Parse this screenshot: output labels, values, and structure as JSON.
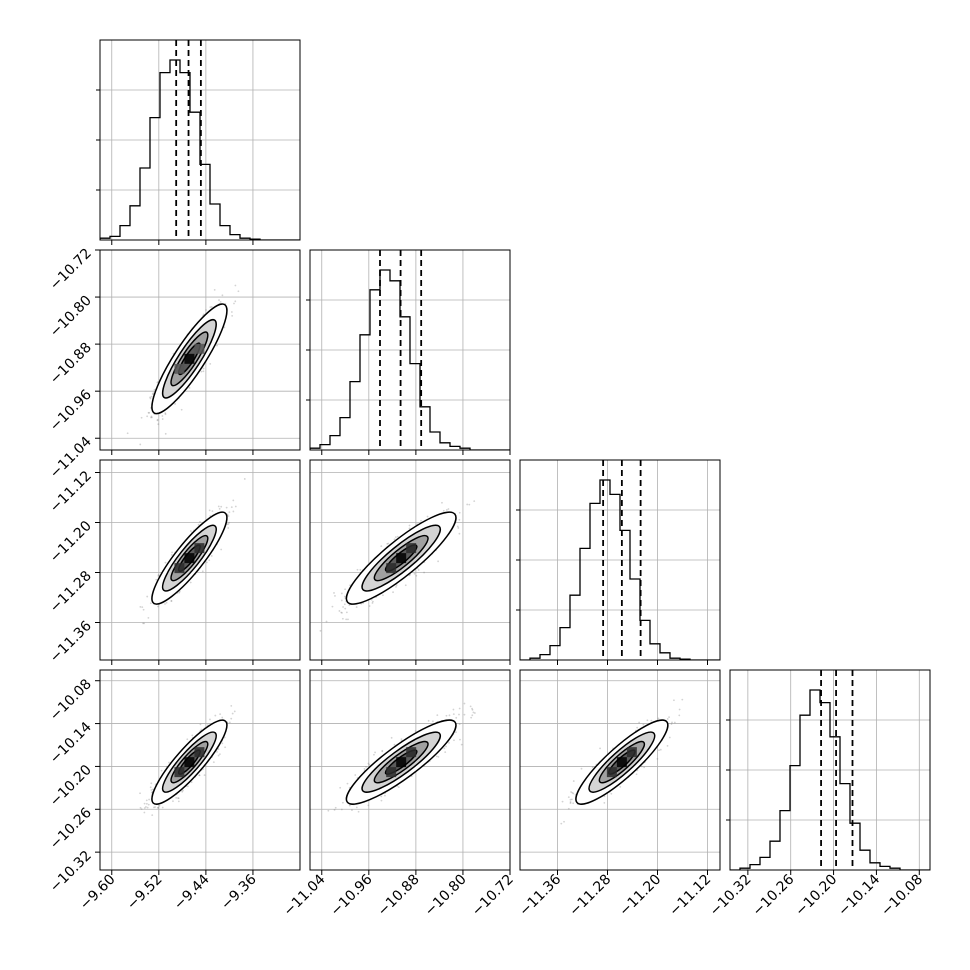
{
  "chart_data": {
    "type": "corner",
    "grid": true,
    "colors": {
      "line": "#000000",
      "grid": "#b0b0b0",
      "point": "#808080"
    },
    "parameters": [
      {
        "range": [
          -9.62,
          -9.28
        ],
        "ticks": [
          -9.6,
          -9.52,
          -9.44,
          -9.36
        ],
        "tick_labels": [
          "−9.60",
          "−9.52",
          "−9.44",
          "−9.36"
        ],
        "mean": -9.468,
        "sd": 0.026,
        "quantiles": [
          -9.4905,
          -9.4695,
          -9.4485
        ]
      },
      {
        "range": [
          -11.06,
          -10.72
        ],
        "ticks": [
          -11.04,
          -10.96,
          -10.88,
          -10.8,
          -10.72
        ],
        "tick_labels": [
          "−11.04",
          "−10.96",
          "−10.88",
          "−10.80",
          "−10.72"
        ],
        "mean": -10.905,
        "sd": 0.038,
        "quantiles": [
          -10.941,
          -10.906,
          -10.871
        ]
      },
      {
        "range": [
          -11.42,
          -11.1
        ],
        "ticks": [
          -11.36,
          -11.28,
          -11.2,
          -11.12
        ],
        "tick_labels": [
          "−11.36",
          "−11.28",
          "−11.20",
          "−11.12"
        ],
        "mean": -11.257,
        "sd": 0.03,
        "quantiles": [
          -11.287,
          -11.257,
          -11.227
        ]
      },
      {
        "range": [
          -10.345,
          -10.065
        ],
        "ticks": [
          -10.32,
          -10.26,
          -10.2,
          -10.14,
          -10.08
        ],
        "tick_labels": [
          "−10.32",
          "−10.26",
          "−10.20",
          "−10.14",
          "−10.08"
        ],
        "mean": -10.194,
        "sd": 0.024,
        "quantiles": [
          -10.2175,
          -10.1965,
          -10.1735
        ]
      }
    ],
    "correlation": 0.88,
    "hist_1d": [
      {
        "range": [
          -9.62,
          -9.28
        ],
        "bins": 20,
        "relative_heights": [
          0.01,
          0.02,
          0.08,
          0.19,
          0.4,
          0.68,
          0.93,
          1.0,
          0.93,
          0.71,
          0.42,
          0.2,
          0.08,
          0.03,
          0.01,
          0.005,
          0,
          0,
          0,
          0
        ]
      },
      {
        "range": [
          -11.06,
          -10.72
        ],
        "bins": 20,
        "relative_heights": [
          0.01,
          0.03,
          0.08,
          0.18,
          0.38,
          0.64,
          0.89,
          1.0,
          0.94,
          0.74,
          0.48,
          0.24,
          0.1,
          0.04,
          0.02,
          0.01,
          0,
          0,
          0,
          0
        ]
      },
      {
        "range": [
          -11.42,
          -11.1
        ],
        "bins": 20,
        "relative_heights": [
          0,
          0.01,
          0.03,
          0.08,
          0.18,
          0.36,
          0.62,
          0.87,
          1.0,
          0.92,
          0.72,
          0.45,
          0.22,
          0.09,
          0.04,
          0.01,
          0.005,
          0,
          0,
          0
        ]
      },
      {
        "range": [
          -10.345,
          -10.065
        ],
        "bins": 20,
        "relative_heights": [
          0,
          0.01,
          0.03,
          0.07,
          0.16,
          0.33,
          0.58,
          0.86,
          1.0,
          0.93,
          0.74,
          0.48,
          0.26,
          0.11,
          0.04,
          0.02,
          0.01,
          0,
          0,
          0
        ]
      }
    ]
  }
}
